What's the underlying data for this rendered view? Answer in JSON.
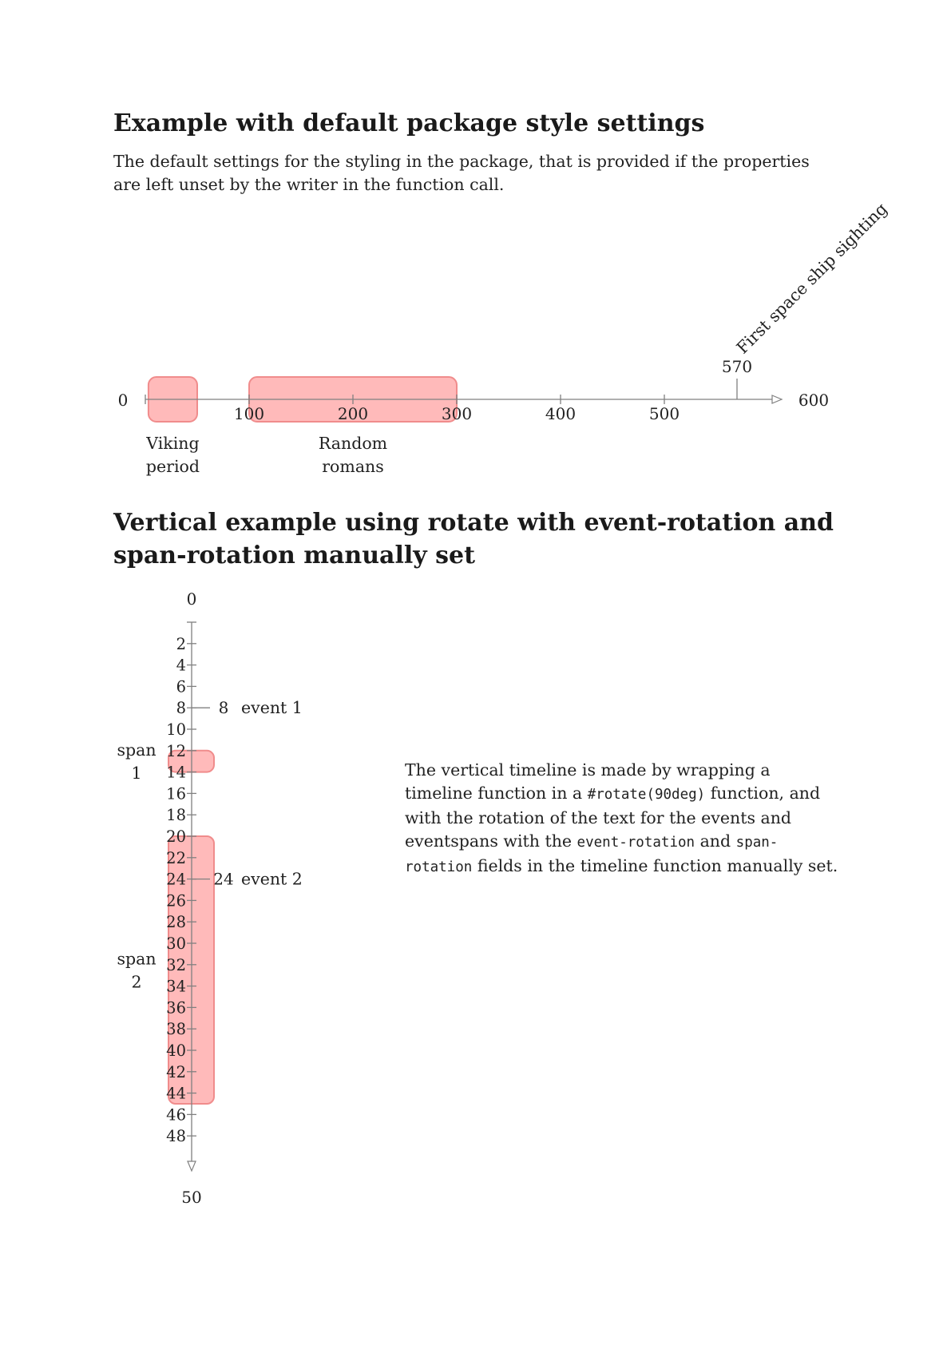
{
  "section1": {
    "heading": "Example with default package style settings",
    "paragraph": "The default settings for the styling in the package, that is provided if the properties are left unset by the writer in the function call."
  },
  "timeline1": {
    "min": 0,
    "max": 600,
    "ticks": [
      100,
      200,
      300,
      400,
      500
    ],
    "min_label": "0",
    "max_label": "600",
    "spans": [
      {
        "start": 3,
        "end": 50,
        "label_lines": [
          "Viking",
          "period"
        ]
      },
      {
        "start": 100,
        "end": 300,
        "label_lines": [
          "Random",
          "romans"
        ]
      }
    ],
    "events": [
      {
        "value": 570,
        "value_label": "570",
        "label": "First space ship sighting"
      }
    ]
  },
  "section2": {
    "heading_lines": [
      "Vertical example using rotate with event-rotation and",
      "span-rotation manually set"
    ],
    "paragraph": {
      "p1": "The vertical timeline is made by wrapping a timeline function in a ",
      "code1": "#rotate(90deg)",
      "p2": " function, and with the rotation of the text for the events and eventspans with the ",
      "code2": "event-rotation",
      "p3": " and ",
      "code3": "span-rotation",
      "p4": " fields in the timeline function manually set."
    }
  },
  "timeline2": {
    "min": 0,
    "max": 50,
    "ticks": [
      2,
      4,
      6,
      8,
      10,
      12,
      14,
      16,
      18,
      20,
      22,
      24,
      26,
      28,
      30,
      32,
      34,
      36,
      38,
      40,
      42,
      44,
      46,
      48
    ],
    "min_label": "0",
    "max_label": "50",
    "spans": [
      {
        "start": 12,
        "end": 14,
        "label_lines": [
          "span",
          "1"
        ]
      },
      {
        "start": 20,
        "end": 45,
        "label_lines": [
          "span",
          "2"
        ]
      }
    ],
    "events": [
      {
        "value": 8,
        "value_label": "8",
        "label": "event 1"
      },
      {
        "value": 24,
        "value_label": "24",
        "label": "event 2"
      }
    ]
  },
  "colors": {
    "span_fill": "#ffb3b3",
    "span_stroke": "#f08c8c",
    "axis": "#808080",
    "text": "#222222"
  }
}
